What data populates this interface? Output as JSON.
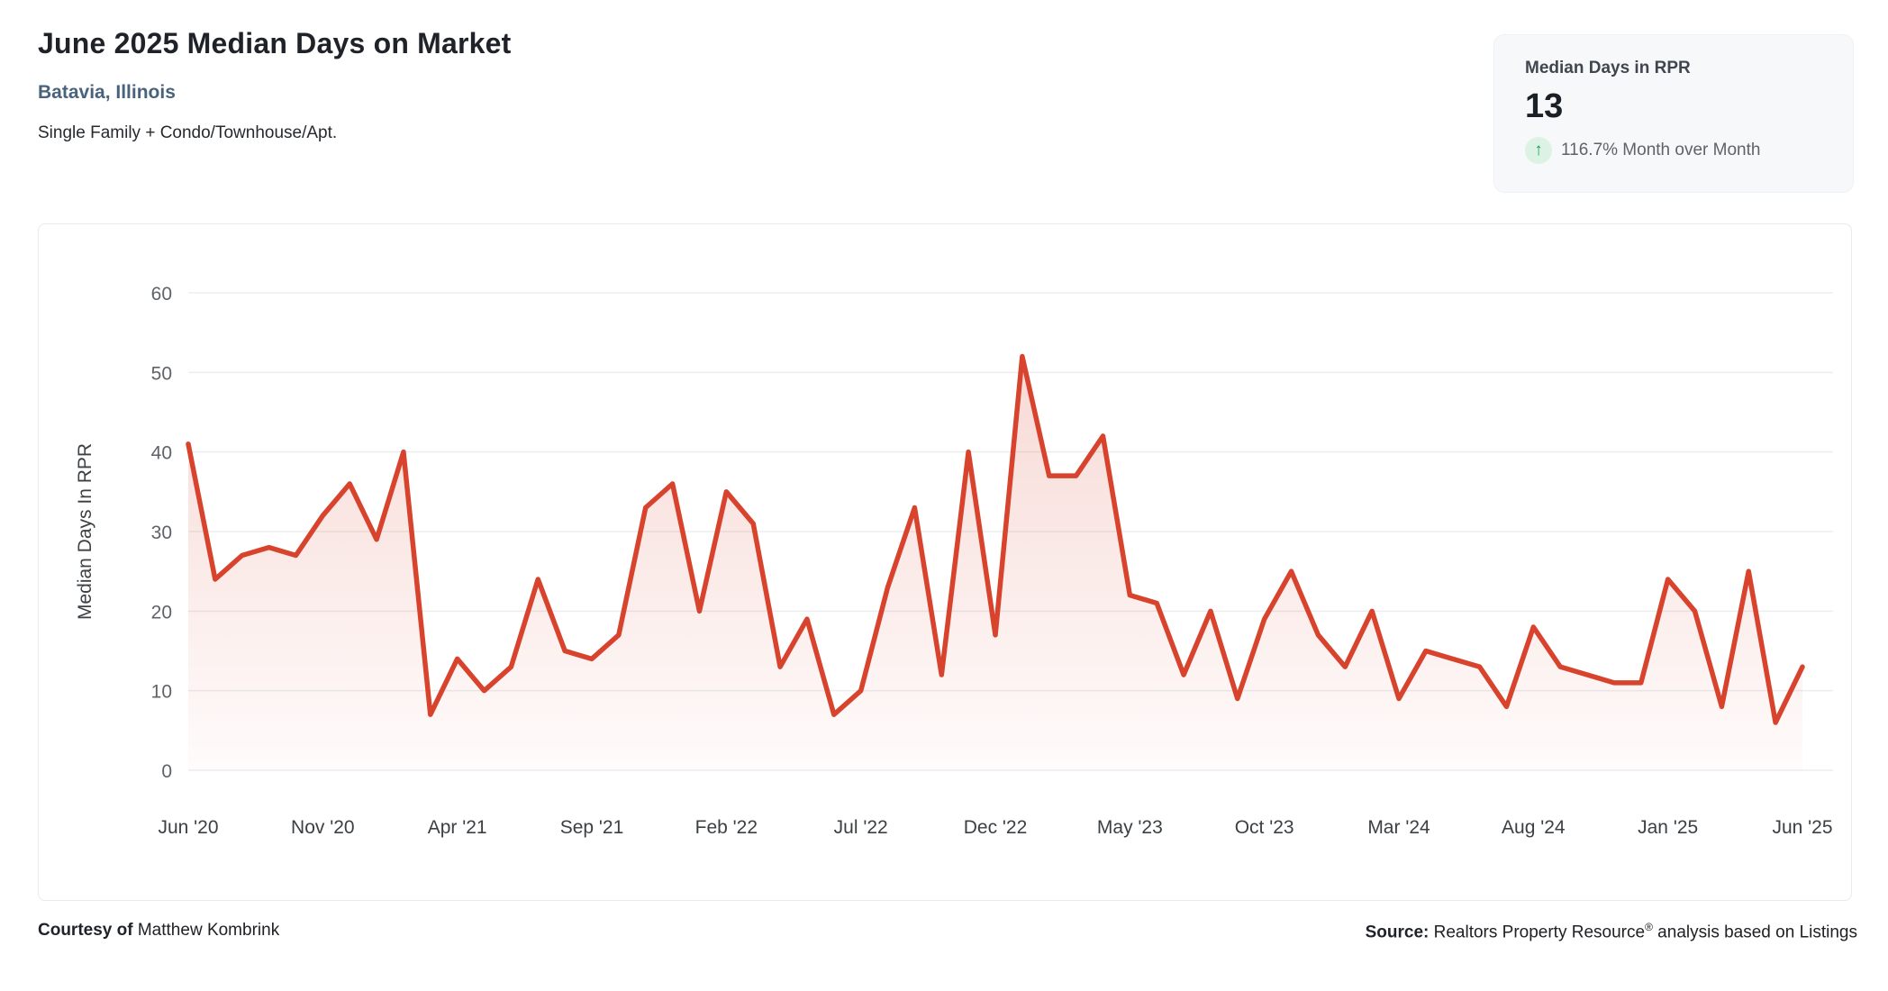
{
  "header": {
    "title": "June 2025 Median Days on Market",
    "location": "Batavia, Illinois",
    "subtitle": "Single Family + Condo/Townhouse/Apt."
  },
  "stat_card": {
    "label": "Median Days in RPR",
    "value": "13",
    "arrow": "↑",
    "change_text": "116.7% Month over Month"
  },
  "footer": {
    "courtesy_label": "Courtesy of",
    "courtesy_name": " Matthew Kombrink",
    "source_label": "Source:",
    "source_name": " Realtors Property Resource",
    "source_reg": "®",
    "source_suffix": " analysis based on Listings"
  },
  "colors": {
    "line": "#d8432d",
    "area_top": "rgba(216,67,45,0.20)",
    "area_bottom": "rgba(216,67,45,0.02)",
    "gridline": "#ebedef",
    "tick_text": "#5f6368",
    "x_tick_text": "#3c4043",
    "axis_title": "#3c4043"
  },
  "chart_data": {
    "type": "line",
    "title": "June 2025 Median Days on Market — Batavia, Illinois",
    "ylabel": "Median Days In RPR",
    "xlabel": "",
    "ylim": [
      0,
      60
    ],
    "grid": true,
    "legend": false,
    "y_ticks": [
      0,
      10,
      20,
      30,
      40,
      50,
      60
    ],
    "x_tick_labels": [
      "Jun '20",
      "Nov '20",
      "Apr '21",
      "Sep '21",
      "Feb '22",
      "Jul '22",
      "Dec '22",
      "May '23",
      "Oct '23",
      "Mar '24",
      "Aug '24",
      "Jan '25",
      "Jun '25"
    ],
    "x": [
      "Jun '20",
      "Jul '20",
      "Aug '20",
      "Sep '20",
      "Oct '20",
      "Nov '20",
      "Dec '20",
      "Jan '21",
      "Feb '21",
      "Mar '21",
      "Apr '21",
      "May '21",
      "Jun '21",
      "Jul '21",
      "Aug '21",
      "Sep '21",
      "Oct '21",
      "Nov '21",
      "Dec '21",
      "Jan '22",
      "Feb '22",
      "Mar '22",
      "Apr '22",
      "May '22",
      "Jun '22",
      "Jul '22",
      "Aug '22",
      "Sep '22",
      "Oct '22",
      "Nov '22",
      "Dec '22",
      "Jan '23",
      "Feb '23",
      "Mar '23",
      "Apr '23",
      "May '23",
      "Jun '23",
      "Jul '23",
      "Aug '23",
      "Sep '23",
      "Oct '23",
      "Nov '23",
      "Dec '23",
      "Jan '24",
      "Feb '24",
      "Mar '24",
      "Apr '24",
      "May '24",
      "Jun '24",
      "Jul '24",
      "Aug '24",
      "Sep '24",
      "Oct '24",
      "Nov '24",
      "Dec '24",
      "Jan '25",
      "Feb '25",
      "Mar '25",
      "Apr '25",
      "May '25",
      "Jun '25"
    ],
    "values": [
      41,
      24,
      27,
      28,
      27,
      32,
      36,
      29,
      40,
      7,
      14,
      10,
      13,
      24,
      15,
      14,
      17,
      33,
      36,
      20,
      35,
      31,
      13,
      19,
      7,
      10,
      23,
      33,
      12,
      40,
      17,
      52,
      37,
      37,
      42,
      22,
      21,
      12,
      20,
      9,
      19,
      25,
      17,
      13,
      20,
      9,
      15,
      14,
      13,
      8,
      18,
      13,
      12,
      11,
      11,
      24,
      20,
      8,
      25,
      6,
      13
    ]
  }
}
